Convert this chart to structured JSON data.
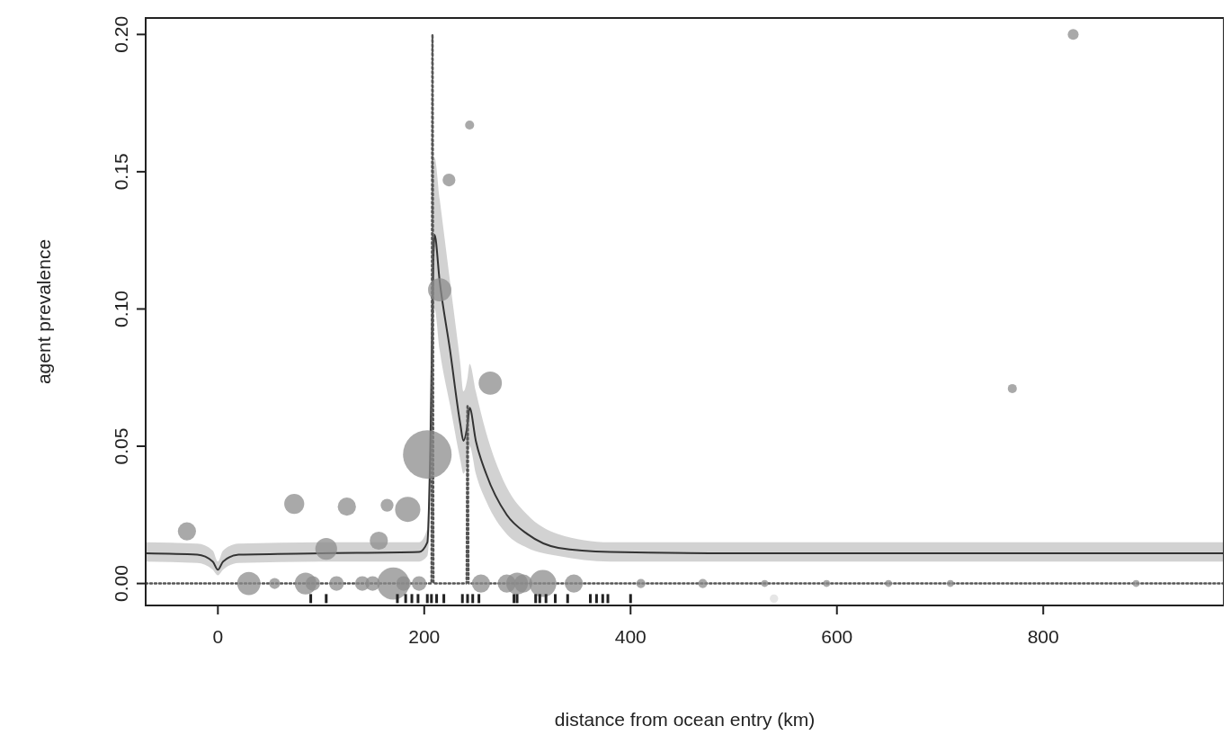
{
  "chart_data": {
    "type": "bubble",
    "xlabel": "distance from ocean entry (km)",
    "ylabel": "agent prevalence",
    "xlim": [
      -70,
      975
    ],
    "ylim": [
      -0.008,
      0.206
    ],
    "xticks": [
      0,
      200,
      400,
      600,
      800
    ],
    "yticks": [
      {
        "value": 0,
        "label": "0.00"
      },
      {
        "value": 0.05,
        "label": "0.05"
      },
      {
        "value": 0.1,
        "label": "0.10"
      },
      {
        "value": 0.15,
        "label": "0.15"
      },
      {
        "value": 0.2,
        "label": "0.20"
      }
    ],
    "grid": false,
    "series": [
      {
        "type": "line",
        "color": "#333333",
        "line_style": "solid",
        "x": [
          -70,
          -20,
          -5,
          0,
          5,
          20,
          100,
          195,
          203,
          206,
          209,
          210,
          215,
          225,
          235,
          238,
          242,
          244,
          250,
          260,
          280,
          300,
          330,
          380,
          500,
          975
        ],
        "values": [
          0.011,
          0.0105,
          0.008,
          0.005,
          0.008,
          0.0105,
          0.011,
          0.0115,
          0.015,
          0.05,
          0.12,
          0.127,
          0.11,
          0.085,
          0.058,
          0.052,
          0.058,
          0.064,
          0.052,
          0.04,
          0.025,
          0.018,
          0.013,
          0.0115,
          0.011,
          0.011
        ],
        "lower": [
          0.008,
          0.0075,
          0.005,
          0.003,
          0.005,
          0.0075,
          0.008,
          0.008,
          0.01,
          0.03,
          0.09,
          0.1,
          0.085,
          0.065,
          0.045,
          0.04,
          0.045,
          0.05,
          0.04,
          0.03,
          0.018,
          0.013,
          0.01,
          0.008,
          0.008,
          0.008
        ],
        "upper": [
          0.015,
          0.0145,
          0.012,
          0.008,
          0.012,
          0.0145,
          0.015,
          0.015,
          0.02,
          0.08,
          0.15,
          0.155,
          0.14,
          0.11,
          0.08,
          0.07,
          0.075,
          0.08,
          0.07,
          0.055,
          0.035,
          0.025,
          0.018,
          0.015,
          0.015,
          0.015
        ]
      },
      {
        "type": "line",
        "color": "#555555",
        "line_style": "dotted",
        "x": [
          -70,
          200,
          207,
          208,
          209,
          241,
          242,
          243,
          975
        ],
        "values": [
          0,
          0,
          0,
          0.2,
          0,
          0,
          0.065,
          0,
          0
        ]
      },
      {
        "color": "#8c8c8c",
        "x": [
          -30,
          30,
          55,
          74,
          85,
          92,
          105,
          115,
          125,
          140,
          150,
          156,
          164,
          170,
          180,
          184,
          195,
          203,
          215,
          224,
          244,
          255,
          264,
          280,
          290,
          296,
          315,
          345,
          410,
          470,
          530,
          590,
          650,
          710,
          770,
          829,
          890
        ],
        "values": [
          0.019,
          0,
          0,
          0.029,
          0,
          0,
          0.0126,
          0,
          0.028,
          0,
          0,
          0.0156,
          0.0285,
          0,
          0,
          0.027,
          0,
          0.047,
          0.107,
          0.147,
          0.167,
          0,
          0.073,
          0,
          0,
          0,
          0,
          0,
          0,
          0,
          0,
          0,
          0,
          0,
          0.071,
          0.2,
          0
        ],
        "sizes": [
          0.14,
          0.23,
          0.05,
          0.17,
          0.2,
          0.09,
          0.2,
          0.09,
          0.14,
          0.09,
          0.09,
          0.14,
          0.07,
          0.44,
          0.09,
          0.27,
          0.09,
          1,
          0.23,
          0.07,
          0.035,
          0.14,
          0.23,
          0.14,
          0.2,
          0.14,
          0.31,
          0.14,
          0.035,
          0.035,
          0.02,
          0.02,
          0.02,
          0.02,
          0.035,
          0.05,
          0.02
        ]
      },
      {
        "color": "#dddddd",
        "x": [
          539
        ],
        "values": [
          -0.0055
        ],
        "sizes": [
          0.03
        ]
      },
      {
        "type": "scatter",
        "color": "#222222",
        "marker": "square",
        "x": [
          90,
          105,
          174,
          182,
          188,
          194,
          203,
          207,
          212,
          219,
          237,
          242,
          247,
          253,
          287,
          290,
          308,
          312,
          318,
          327,
          339,
          361,
          367,
          373,
          378,
          400
        ],
        "values": [
          -0.0055,
          -0.0055,
          -0.0055,
          -0.0055,
          -0.0055,
          -0.0055,
          -0.0055,
          -0.0055,
          -0.0055,
          -0.0055,
          -0.0055,
          -0.0055,
          -0.0055,
          -0.0055,
          -0.0055,
          -0.0055,
          -0.0055,
          -0.0055,
          -0.0055,
          -0.0055,
          -0.0055,
          -0.0055,
          -0.0055,
          -0.0055,
          -0.0055,
          -0.0055
        ]
      }
    ]
  }
}
